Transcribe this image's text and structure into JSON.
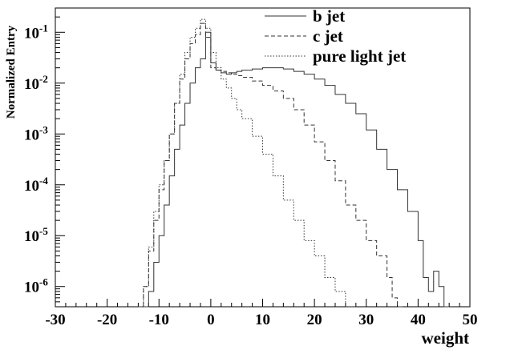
{
  "chart_data": {
    "type": "line",
    "xlabel": "weight",
    "ylabel": "Normalized Entry",
    "xlim": [
      -30,
      50
    ],
    "ylim": [
      4e-07,
      0.3
    ],
    "y_scale": "log",
    "x_ticks": [
      "-30",
      "-20",
      "-10",
      "0",
      "10",
      "20",
      "30",
      "40",
      "50"
    ],
    "y_ticks": [
      {
        "base": "10",
        "exp": "-1",
        "value": 0.1
      },
      {
        "base": "10",
        "exp": "-2",
        "value": 0.01
      },
      {
        "base": "10",
        "exp": "-3",
        "value": 0.001
      },
      {
        "base": "10",
        "exp": "-4",
        "value": 0.0001
      },
      {
        "base": "10",
        "exp": "-5",
        "value": 1e-05
      },
      {
        "base": "10",
        "exp": "-6",
        "value": 1e-06
      }
    ],
    "legend_position": "top-right",
    "grid": false,
    "series": [
      {
        "name": "b jet",
        "style": "solid",
        "x": [
          -13,
          -12,
          -11,
          -10,
          -9,
          -8,
          -7,
          -6,
          -5,
          -4,
          -3,
          -2,
          -1,
          0,
          1,
          2,
          3,
          4,
          5,
          6,
          8,
          10,
          12,
          14,
          16,
          18,
          20,
          22,
          24,
          26,
          28,
          30,
          32,
          34,
          36,
          38,
          40,
          41,
          42,
          43,
          44,
          45
        ],
        "y": [
          4e-07,
          8e-07,
          3e-06,
          1e-05,
          4e-05,
          0.00015,
          0.0005,
          0.0015,
          0.004,
          0.01,
          0.02,
          0.03,
          0.1,
          0.025,
          0.018,
          0.016,
          0.015,
          0.016,
          0.017,
          0.018,
          0.019,
          0.02,
          0.02,
          0.019,
          0.017,
          0.015,
          0.012,
          0.009,
          0.006,
          0.004,
          0.0025,
          0.0012,
          0.0005,
          0.0002,
          8e-05,
          3e-05,
          8e-06,
          1.5e-06,
          8e-07,
          2e-06,
          1e-06,
          4e-07
        ]
      },
      {
        "name": "c jet",
        "style": "dashed",
        "x": [
          -14,
          -13,
          -12,
          -11,
          -10,
          -9,
          -8,
          -7,
          -6,
          -5,
          -4,
          -3,
          -2,
          -1,
          0,
          1,
          2,
          3,
          4,
          5,
          6,
          8,
          10,
          12,
          14,
          16,
          18,
          20,
          22,
          24,
          26,
          28,
          30,
          32,
          34,
          35,
          36
        ],
        "y": [
          4e-07,
          1e-06,
          5e-06,
          2e-05,
          8e-05,
          0.0003,
          0.001,
          0.004,
          0.012,
          0.03,
          0.06,
          0.09,
          0.15,
          0.08,
          0.02,
          0.018,
          0.017,
          0.016,
          0.015,
          0.014,
          0.013,
          0.011,
          0.009,
          0.007,
          0.005,
          0.003,
          0.0015,
          0.0007,
          0.0003,
          0.00012,
          4e-05,
          2e-05,
          8e-06,
          4e-06,
          1.5e-06,
          6e-07,
          4e-07
        ]
      },
      {
        "name": "pure light jet",
        "style": "dotted",
        "x": [
          -14,
          -13,
          -12,
          -11,
          -10,
          -9,
          -8,
          -7,
          -6,
          -5,
          -4,
          -3,
          -2,
          -1,
          0,
          1,
          2,
          3,
          4,
          5,
          6,
          8,
          10,
          12,
          14,
          16,
          18,
          20,
          22,
          24,
          26,
          27
        ],
        "y": [
          4e-07,
          1e-06,
          6e-06,
          3e-05,
          0.0001,
          0.0003,
          0.001,
          0.004,
          0.015,
          0.04,
          0.08,
          0.12,
          0.18,
          0.12,
          0.04,
          0.02,
          0.012,
          0.008,
          0.005,
          0.003,
          0.002,
          0.0009,
          0.0004,
          0.00015,
          5e-05,
          2e-05,
          8e-06,
          4e-06,
          1.5e-06,
          8e-07,
          4e-07,
          4e-07
        ]
      }
    ]
  }
}
